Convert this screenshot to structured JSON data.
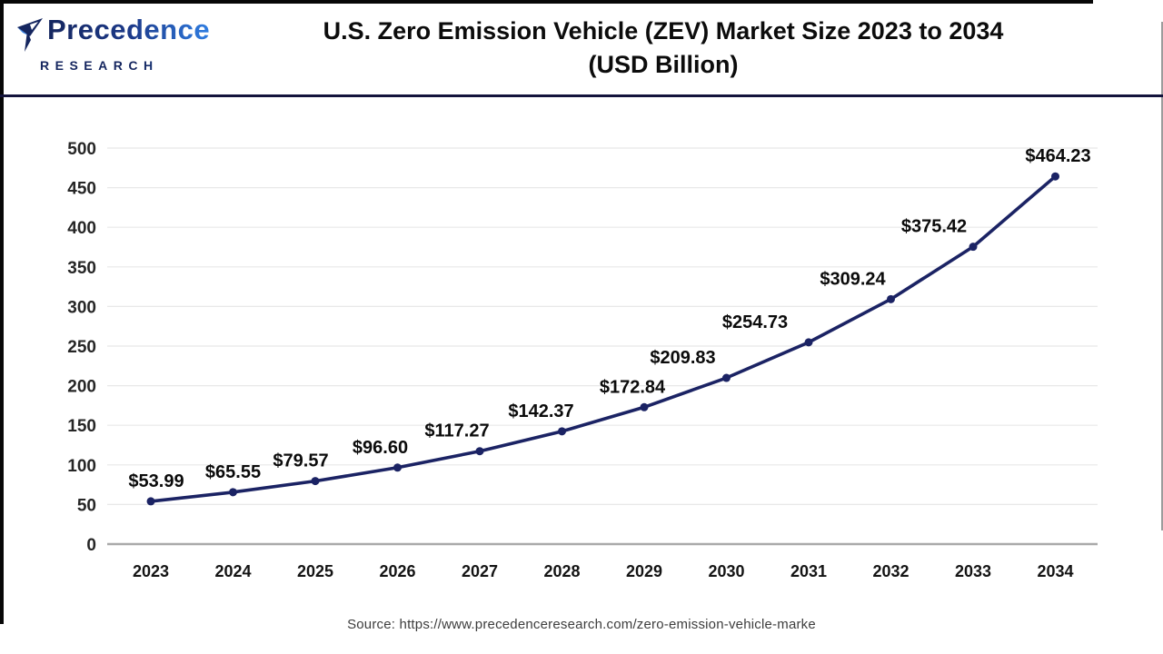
{
  "header": {
    "logo": {
      "name": "Precedence",
      "subtitle": "RESEARCH"
    },
    "title_line1": "U.S. Zero Emission Vehicle (ZEV) Market Size 2023 to 2034",
    "title_line2": "(USD Billion)"
  },
  "chart_data": {
    "type": "line",
    "title": "U.S. Zero Emission Vehicle (ZEV) Market Size 2023 to 2034 (USD Billion)",
    "unit": "USD Billion",
    "categories": [
      "2023",
      "2024",
      "2025",
      "2026",
      "2027",
      "2028",
      "2029",
      "2030",
      "2031",
      "2032",
      "2033",
      "2034"
    ],
    "values": [
      53.99,
      65.55,
      79.57,
      96.6,
      117.27,
      142.37,
      172.84,
      209.83,
      254.73,
      309.24,
      375.42,
      464.23
    ],
    "value_labels": [
      "$53.99",
      "$65.55",
      "$79.57",
      "$96.60",
      "$117.27",
      "$142.37",
      "$172.84",
      "$209.83",
      "$254.73",
      "$309.24",
      "$375.42",
      "$464.23"
    ],
    "yticks": [
      0,
      50,
      100,
      150,
      200,
      250,
      300,
      350,
      400,
      450,
      500
    ],
    "ylim": [
      0,
      500
    ],
    "xlabel": "",
    "ylabel": "",
    "grid": true,
    "legend": "none",
    "line_color": "#1b2364",
    "marker_color": "#1b2364",
    "gridline_color": "#e8e8e8",
    "axis_line_color": "#a9a9a9"
  },
  "source": "Source: https://www.precedenceresearch.com/zero-emission-vehicle-marke"
}
